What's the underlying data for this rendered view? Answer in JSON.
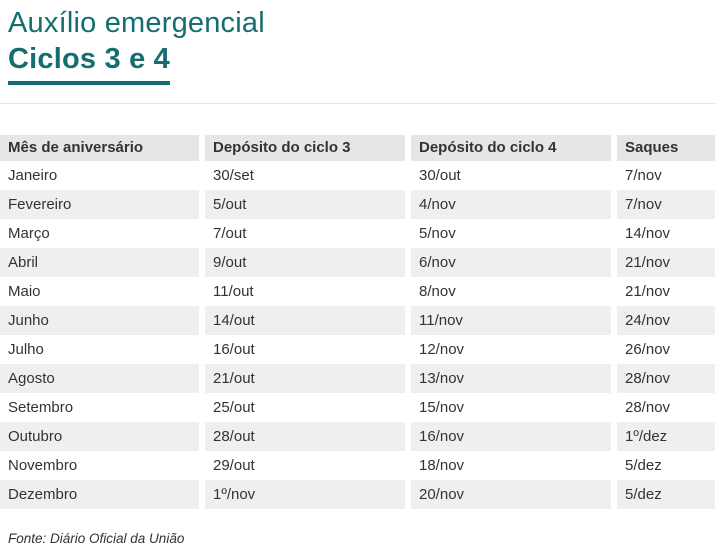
{
  "title": {
    "line1": "Auxílio emergencial",
    "line2": "Ciclos 3 e 4"
  },
  "colors": {
    "accent_teal": "#146e6f",
    "header_bg": "#e6e6e6",
    "stripe_bg": "#efefef",
    "text": "#333333"
  },
  "chart_data": {
    "type": "table",
    "title": "Auxílio emergencial — Ciclos 3 e 4",
    "columns": [
      "Mês de aniversário",
      "Depósito do ciclo 3",
      "Depósito do ciclo 4",
      "Saques"
    ],
    "rows": [
      [
        "Janeiro",
        "30/set",
        "30/out",
        "7/nov"
      ],
      [
        "Fevereiro",
        "5/out",
        "4/nov",
        "7/nov"
      ],
      [
        "Março",
        "7/out",
        "5/nov",
        "14/nov"
      ],
      [
        "Abril",
        "9/out",
        "6/nov",
        "21/nov"
      ],
      [
        "Maio",
        "11/out",
        "8/nov",
        "21/nov"
      ],
      [
        "Junho",
        "14/out",
        "11/nov",
        "24/nov"
      ],
      [
        "Julho",
        "16/out",
        "12/nov",
        "26/nov"
      ],
      [
        "Agosto",
        "21/out",
        "13/nov",
        "28/nov"
      ],
      [
        "Setembro",
        "25/out",
        "15/nov",
        "28/nov"
      ],
      [
        "Outubro",
        "28/out",
        "16/nov",
        "1º/dez"
      ],
      [
        "Novembro",
        "29/out",
        "18/nov",
        "5/dez"
      ],
      [
        "Dezembro",
        "1º/nov",
        "20/nov",
        "5/dez"
      ]
    ],
    "source": "Fonte: Diário Oficial da União",
    "layout": {
      "striped": true,
      "stripe_pattern": "even rows shaded",
      "column_separator": "white gap"
    }
  }
}
